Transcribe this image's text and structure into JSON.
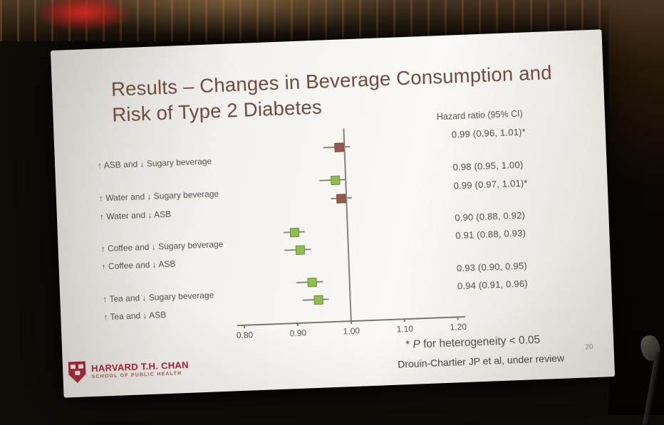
{
  "slide": {
    "title": {
      "line1": "Results – Changes in Beverage Consumption and",
      "line2": "Risk of Type 2 Diabetes"
    },
    "column_header": "Hazard ratio (95% CI)",
    "footnote": {
      "prefix": "* ",
      "italic": "P",
      "suffix": " for heterogeneity < 0.05"
    },
    "citation": "Drouin-Chartier JP et al, under review",
    "page_number": "20",
    "logo": {
      "line1": "HARVARD T.H. CHAN",
      "line2": "SCHOOL OF PUBLIC HEALTH",
      "brand_color": "#a51c30"
    }
  },
  "chart_data": {
    "type": "forest",
    "title": "Results – Changes in Beverage Consumption and Risk of Type 2 Diabetes",
    "value_header": "Hazard ratio (95% CI)",
    "x_axis": {
      "ticks": [
        "0.80",
        "0.90",
        "1.00",
        "1.10",
        "1.20"
      ],
      "range": [
        0.8,
        1.2
      ],
      "reference_line": 1.0
    },
    "marker_colors": {
      "green": "#8cbf50",
      "maroon": "#96584e"
    },
    "rows": [
      {
        "label": "↑ ASB and ↓ Sugary beverage",
        "hr": 0.99,
        "ci_low": 0.96,
        "ci_high": 1.01,
        "value_text": "0.99 (0.96, 1.01)*",
        "marker_color": "#96584e"
      },
      {
        "label": "↑ Water and ↓ Sugary beverage",
        "hr": 0.98,
        "ci_low": 0.95,
        "ci_high": 1.0,
        "value_text": "0.98 (0.95, 1.00)",
        "marker_color": "#8cbf50"
      },
      {
        "label": "↑ Water and ↓ ASB",
        "hr": 0.99,
        "ci_low": 0.97,
        "ci_high": 1.01,
        "value_text": "0.99 (0.97, 1.01)*",
        "marker_color": "#96584e"
      },
      {
        "label": "↑ Coffee and ↓ Sugary beverage",
        "hr": 0.9,
        "ci_low": 0.88,
        "ci_high": 0.92,
        "value_text": "0.90 (0.88, 0.92)",
        "marker_color": "#8cbf50"
      },
      {
        "label": "↑ Coffee and ↓ ASB",
        "hr": 0.91,
        "ci_low": 0.88,
        "ci_high": 0.93,
        "value_text": "0.91 (0.88, 0.93)",
        "marker_color": "#8cbf50"
      },
      {
        "label": "↑ Tea and ↓ Sugary beverage",
        "hr": 0.93,
        "ci_low": 0.9,
        "ci_high": 0.95,
        "value_text": "0.93 (0.90, 0.95)",
        "marker_color": "#8cbf50"
      },
      {
        "label": "↑ Tea and ↓ ASB",
        "hr": 0.94,
        "ci_low": 0.91,
        "ci_high": 0.96,
        "value_text": "0.94 (0.91, 0.96)",
        "marker_color": "#8cbf50"
      }
    ],
    "footnote": "* P for heterogeneity < 0.05"
  }
}
